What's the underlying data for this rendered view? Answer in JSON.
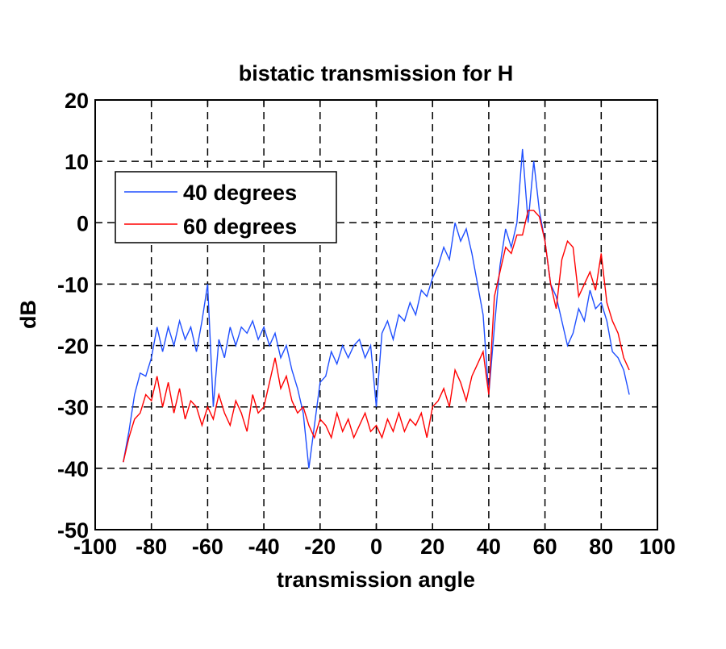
{
  "chart_data": {
    "type": "line",
    "title": "bistatic transmission for H",
    "xlabel": "transmission angle",
    "ylabel": "dB",
    "xlim": [
      -100,
      100
    ],
    "ylim": [
      -50,
      20
    ],
    "xticks": [
      -100,
      -80,
      -60,
      -40,
      -20,
      0,
      20,
      40,
      60,
      80,
      100
    ],
    "yticks": [
      20,
      10,
      0,
      -10,
      -20,
      -30,
      -40,
      -50
    ],
    "grid": true,
    "legend_position": "top-left",
    "x": [
      -90,
      -88,
      -86,
      -84,
      -82,
      -80,
      -78,
      -76,
      -74,
      -72,
      -70,
      -68,
      -66,
      -64,
      -62,
      -60,
      -58,
      -56,
      -54,
      -52,
      -50,
      -48,
      -46,
      -44,
      -42,
      -40,
      -38,
      -36,
      -34,
      -32,
      -30,
      -28,
      -26,
      -24,
      -22,
      -20,
      -18,
      -16,
      -14,
      -12,
      -10,
      -8,
      -6,
      -4,
      -2,
      0,
      2,
      4,
      6,
      8,
      10,
      12,
      14,
      16,
      18,
      20,
      22,
      24,
      26,
      28,
      30,
      32,
      34,
      36,
      38,
      40,
      42,
      44,
      46,
      48,
      50,
      52,
      54,
      56,
      58,
      60,
      62,
      64,
      66,
      68,
      70,
      72,
      74,
      76,
      78,
      80,
      82,
      84,
      86,
      88,
      90
    ],
    "series": [
      {
        "name": "40 degrees",
        "color": "#1f4fff",
        "values": [
          -39,
          -34,
          -28,
          -24.5,
          -25,
          -22,
          -17,
          -21,
          -17,
          -20,
          -16,
          -19,
          -17,
          -21,
          -16,
          -10,
          -30,
          -19,
          -22,
          -17,
          -20,
          -17,
          -18,
          -16,
          -19,
          -17,
          -20,
          -18,
          -22,
          -20,
          -24,
          -27,
          -31,
          -40,
          -33,
          -26,
          -25,
          -21,
          -23,
          -20,
          -22,
          -20,
          -19,
          -22,
          -20,
          -30,
          -18,
          -16,
          -19,
          -15,
          -16,
          -13,
          -15,
          -11,
          -12,
          -9,
          -7,
          -4,
          -6,
          0,
          -3,
          -1,
          -5,
          -10,
          -15,
          -28,
          -17,
          -7,
          -1,
          -4,
          0,
          12,
          0,
          10,
          2,
          -3,
          -10,
          -12,
          -16,
          -20,
          -18,
          -14,
          -16,
          -11,
          -14,
          -13,
          -16,
          -21,
          -22,
          -24,
          -28
        ]
      },
      {
        "name": "60 degrees",
        "color": "#ff0000",
        "values": [
          -39,
          -35,
          -32,
          -31,
          -28,
          -29,
          -25,
          -30,
          -26,
          -31,
          -27,
          -32,
          -29,
          -30,
          -33,
          -30,
          -32,
          -28,
          -31,
          -33,
          -29,
          -31,
          -34,
          -28,
          -31,
          -30,
          -26,
          -22,
          -27,
          -25,
          -29,
          -31,
          -30,
          -33,
          -35,
          -32,
          -33,
          -35,
          -31,
          -34,
          -32,
          -35,
          -33,
          -31,
          -34,
          -33,
          -35,
          -32,
          -34,
          -31,
          -34,
          -32,
          -33,
          -31,
          -35,
          -30,
          -29,
          -27,
          -30,
          -24,
          -26,
          -29,
          -25,
          -23,
          -21,
          -28,
          -12,
          -8,
          -4,
          -5,
          -2,
          -2,
          2,
          2,
          1,
          -3,
          -10,
          -14,
          -6,
          -3,
          -4,
          -12,
          -10,
          -8,
          -11,
          -5,
          -13,
          -16,
          -18,
          -22,
          -24
        ]
      }
    ]
  }
}
